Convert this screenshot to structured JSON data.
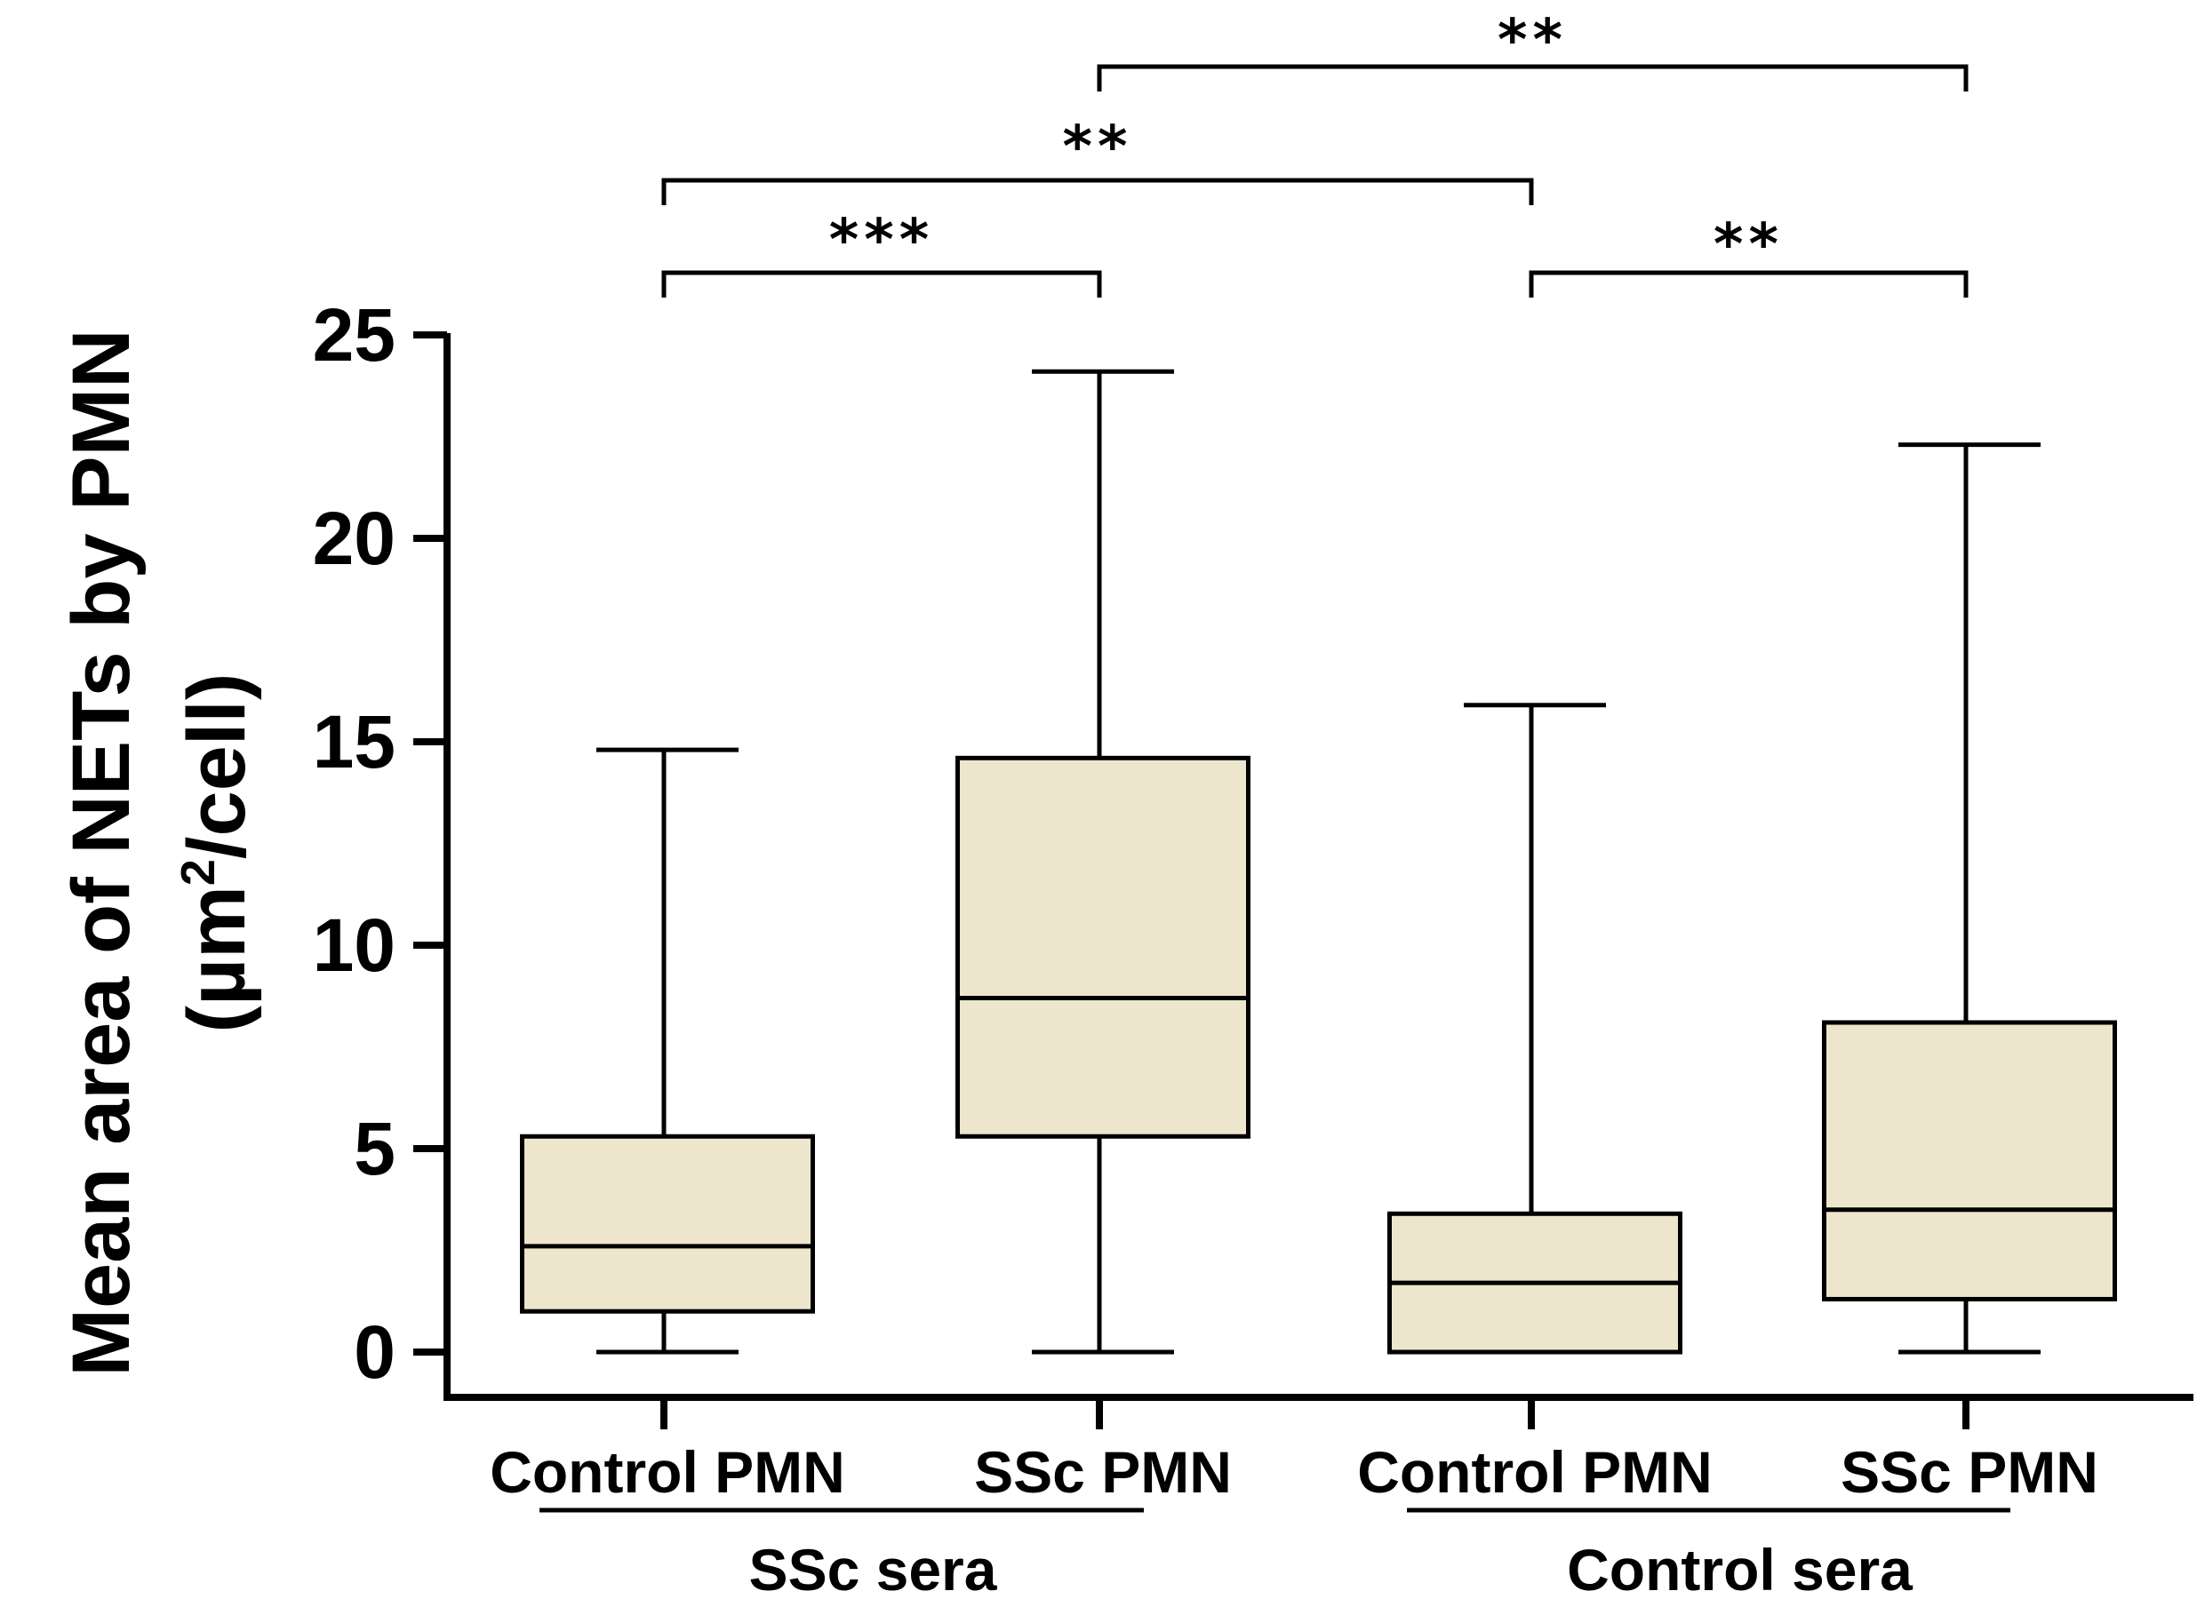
{
  "chart_data": {
    "type": "box",
    "title": "",
    "ylabel_line1": "Mean area of NETs by PMN",
    "ylabel_line2_prefix": "(µm",
    "ylabel_line2_sup": "2",
    "ylabel_line2_suffix": "/cell)",
    "ylim": [
      0,
      25
    ],
    "yticks": [
      0,
      5,
      10,
      15,
      20,
      25
    ],
    "ytick_labels": [
      "0",
      "5",
      "10",
      "15",
      "20",
      "25"
    ],
    "categories": [
      "Control PMN",
      "SSc PMN",
      "Control PMN",
      "SSc PMN"
    ],
    "groups": [
      {
        "label": "SSc sera",
        "members": [
          0,
          1
        ]
      },
      {
        "label": "Control sera",
        "members": [
          2,
          3
        ]
      }
    ],
    "boxes": [
      {
        "min": 0,
        "q1": 1.0,
        "median": 2.6,
        "q3": 5.3,
        "max": 14.8
      },
      {
        "min": 0,
        "q1": 5.3,
        "median": 8.7,
        "q3": 14.6,
        "max": 24.1
      },
      {
        "min": 0,
        "q1": 0,
        "median": 1.7,
        "q3": 3.4,
        "max": 15.9
      },
      {
        "min": 0,
        "q1": 1.3,
        "median": 3.5,
        "q3": 8.1,
        "max": 22.3
      }
    ],
    "box_fill": "#ede6cc",
    "significance": [
      {
        "from": 0,
        "to": 1,
        "label": "***"
      },
      {
        "from": 2,
        "to": 3,
        "label": "**"
      },
      {
        "from": 0,
        "to": 2,
        "label": "**"
      },
      {
        "from": 1,
        "to": 3,
        "label": "**"
      }
    ]
  }
}
